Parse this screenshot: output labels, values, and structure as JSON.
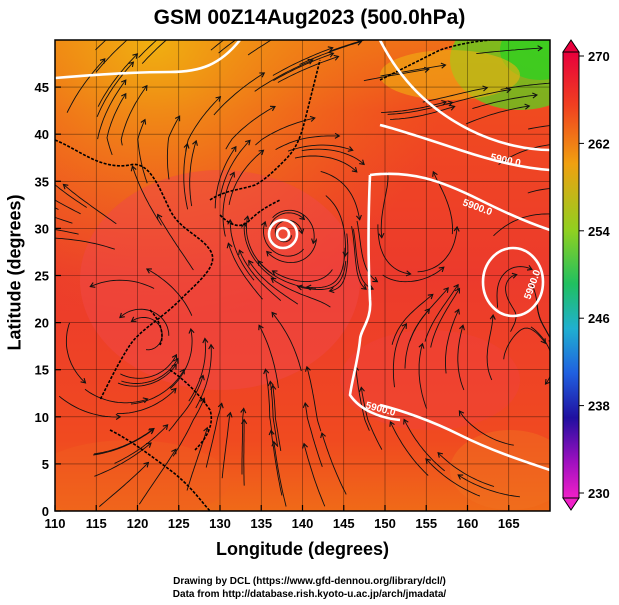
{
  "header": {
    "title": "GSM 00Z14Aug2023 (500.0hPa)"
  },
  "axes": {
    "xlabel": "Longitude (degrees)",
    "ylabel": "Latitude  (degrees)",
    "x_ticks": [
      "110",
      "115",
      "120",
      "125",
      "130",
      "135",
      "140",
      "145",
      "150",
      "155",
      "160",
      "165"
    ],
    "y_ticks": [
      "0",
      "5",
      "10",
      "15",
      "20",
      "25",
      "30",
      "35",
      "40",
      "45"
    ]
  },
  "colorbar": {
    "labels": [
      "270",
      "262",
      "254",
      "246",
      "238",
      "230"
    ],
    "colors": [
      "#e8003c",
      "#f06020",
      "#f0c010",
      "#30c020",
      "#20b0c0",
      "#2050e0",
      "#4010a0",
      "#e020c0"
    ]
  },
  "contours": {
    "labels": [
      "5900.0",
      "5900.0",
      "5900.0",
      "5900.0"
    ]
  },
  "credits": {
    "line1": "Drawing by DCL (https://www.gfd-dennou.org/library/dcl/)",
    "line2": "Data from http://database.rish.kyoto-u.ac.jp/arch/jmadata/"
  },
  "chart_data": {
    "type": "heatmap",
    "title": "GSM 00Z14Aug2023 (500.0hPa)",
    "xlabel": "Longitude (degrees)",
    "ylabel": "Latitude  (degrees)",
    "xlim": [
      110,
      170
    ],
    "ylim": [
      0,
      50
    ],
    "color_range": [
      230,
      270
    ],
    "contour_level": 5900.0,
    "grid": true
  }
}
